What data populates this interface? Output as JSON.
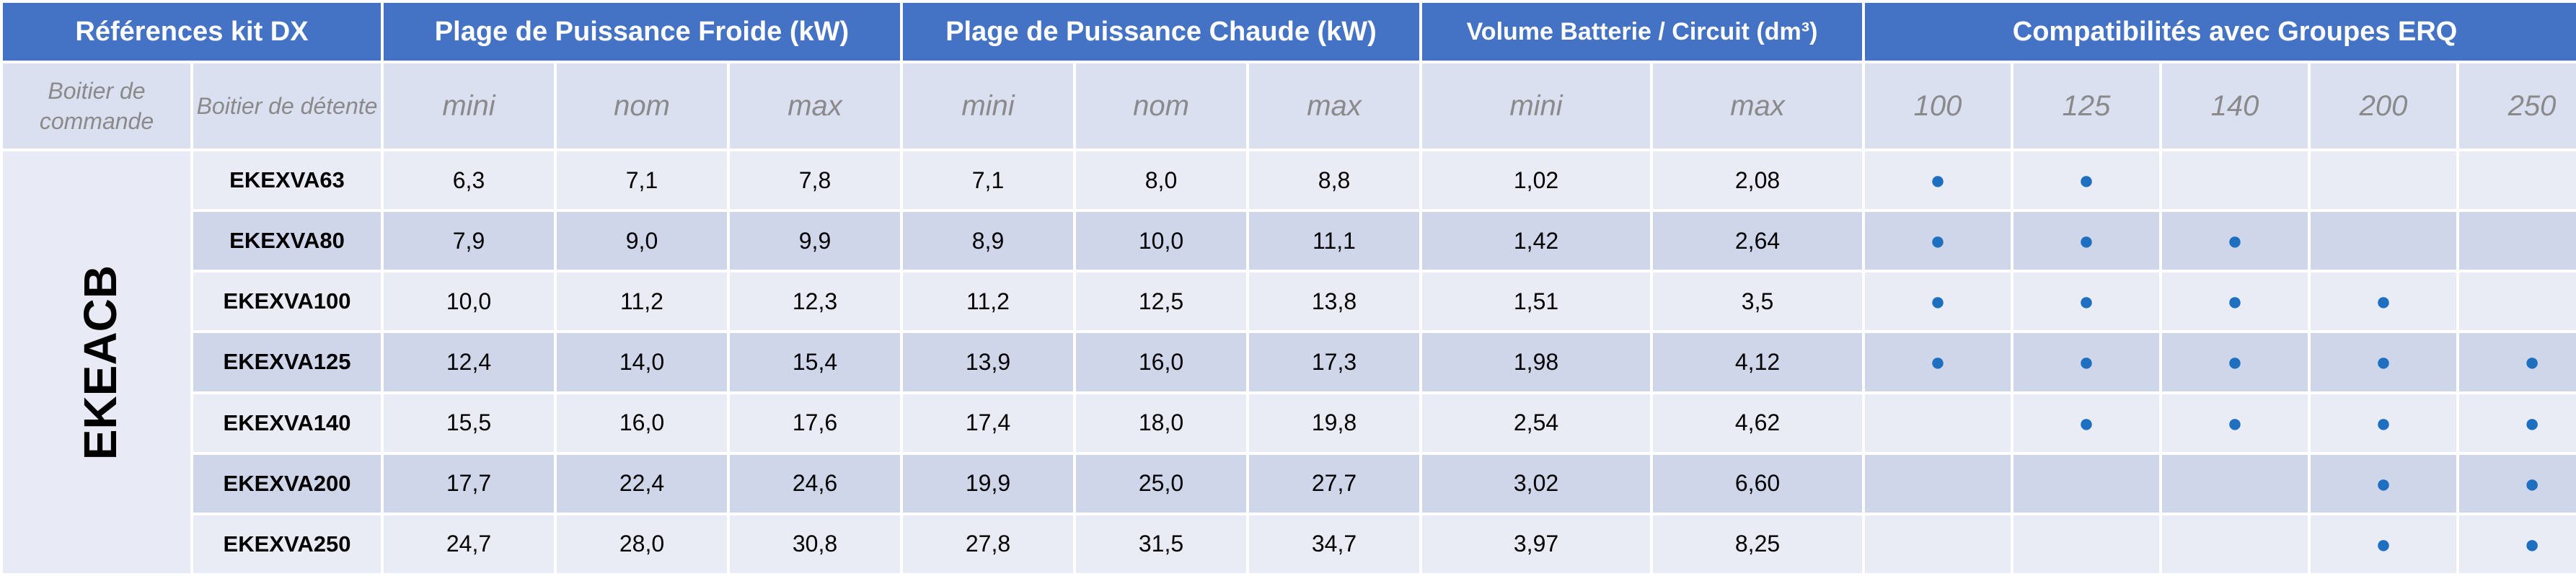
{
  "header": {
    "refs": "Références kit DX",
    "cold": "Plage de Puissance Froide (kW)",
    "hot": "Plage de  Puissance Chaude (kW)",
    "volume": "Volume Batterie / Circuit (dm³)",
    "compat": "Compatibilités avec Groupes ERQ"
  },
  "subheader": {
    "control_box": "Boitier de commande",
    "expansion_box": "Boitier de détente",
    "cold": [
      "mini",
      "nom",
      "max"
    ],
    "hot": [
      "mini",
      "nom",
      "max"
    ],
    "volume": [
      "mini",
      "max"
    ],
    "erq": [
      "100",
      "125",
      "140",
      "200",
      "250"
    ]
  },
  "brand": "EKEACB",
  "rows": [
    {
      "ref": "EKEXVA63",
      "cold": [
        "6,3",
        "7,1",
        "7,8"
      ],
      "hot": [
        "7,1",
        "8,0",
        "8,8"
      ],
      "volume": [
        "1,02",
        "2,08"
      ],
      "compat": [
        true,
        true,
        false,
        false,
        false
      ]
    },
    {
      "ref": "EKEXVA80",
      "cold": [
        "7,9",
        "9,0",
        "9,9"
      ],
      "hot": [
        "8,9",
        "10,0",
        "11,1"
      ],
      "volume": [
        "1,42",
        "2,64"
      ],
      "compat": [
        true,
        true,
        true,
        false,
        false
      ]
    },
    {
      "ref": "EKEXVA100",
      "cold": [
        "10,0",
        "11,2",
        "12,3"
      ],
      "hot": [
        "11,2",
        "12,5",
        "13,8"
      ],
      "volume": [
        "1,51",
        "3,5"
      ],
      "compat": [
        true,
        true,
        true,
        true,
        false
      ]
    },
    {
      "ref": "EKEXVA125",
      "cold": [
        "12,4",
        "14,0",
        "15,4"
      ],
      "hot": [
        "13,9",
        "16,0",
        "17,3"
      ],
      "volume": [
        "1,98",
        "4,12"
      ],
      "compat": [
        true,
        true,
        true,
        true,
        true
      ]
    },
    {
      "ref": "EKEXVA140",
      "cold": [
        "15,5",
        "16,0",
        "17,6"
      ],
      "hot": [
        "17,4",
        "18,0",
        "19,8"
      ],
      "volume": [
        "2,54",
        "4,62"
      ],
      "compat": [
        false,
        true,
        true,
        true,
        true
      ]
    },
    {
      "ref": "EKEXVA200",
      "cold": [
        "17,7",
        "22,4",
        "24,6"
      ],
      "hot": [
        "19,9",
        "25,0",
        "27,7"
      ],
      "volume": [
        "3,02",
        "6,60"
      ],
      "compat": [
        false,
        false,
        false,
        true,
        true
      ]
    },
    {
      "ref": "EKEXVA250",
      "cold": [
        "24,7",
        "28,0",
        "30,8"
      ],
      "hot": [
        "27,8",
        "31,5",
        "34,7"
      ],
      "volume": [
        "3,97",
        "8,25"
      ],
      "compat": [
        false,
        false,
        false,
        true,
        true
      ]
    }
  ],
  "dot_symbol": "●",
  "colors": {
    "header": "#4472c4",
    "dot": "#1f6fc1",
    "row_light": "#e9ecf5",
    "row_dark": "#cfd6ea"
  }
}
